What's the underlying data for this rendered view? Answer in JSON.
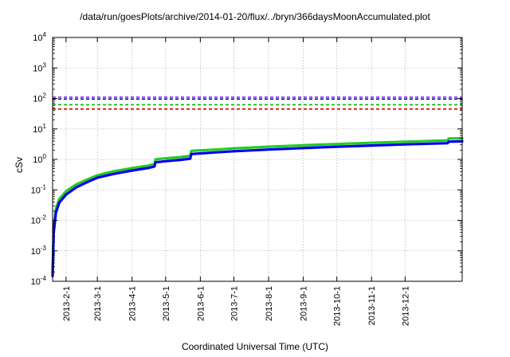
{
  "chart_data": {
    "type": "line",
    "title": "/data/run/goesPlots/archive/2014-01-20/flux/../bryn/366daysMoonAccumulated.plot",
    "xlabel": "Coordinated Universal Time (UTC)",
    "ylabel": "cSv",
    "yscale": "log",
    "ylim": [
      0.0001,
      10000
    ],
    "xlim": [
      "2013-01-20",
      "2014-01-21"
    ],
    "grid": true,
    "y_ticks": [
      {
        "value": 0.0001,
        "base": "10",
        "exp": "-4"
      },
      {
        "value": 0.001,
        "base": "10",
        "exp": "-3"
      },
      {
        "value": 0.01,
        "base": "10",
        "exp": "-2"
      },
      {
        "value": 0.1,
        "base": "10",
        "exp": "-1"
      },
      {
        "value": 1,
        "base": "10",
        "exp": "0"
      },
      {
        "value": 10,
        "base": "10",
        "exp": "1"
      },
      {
        "value": 100,
        "base": "10",
        "exp": "2"
      },
      {
        "value": 1000,
        "base": "10",
        "exp": "3"
      },
      {
        "value": 10000,
        "base": "10",
        "exp": "4"
      }
    ],
    "x_ticks": [
      {
        "date": "2013-02-01",
        "label": "2013-2-1"
      },
      {
        "date": "2013-03-01",
        "label": "2013-3-1"
      },
      {
        "date": "2013-04-01",
        "label": "2013-4-1"
      },
      {
        "date": "2013-05-01",
        "label": "2013-5-1"
      },
      {
        "date": "2013-06-01",
        "label": "2013-6-1"
      },
      {
        "date": "2013-07-01",
        "label": "2013-7-1"
      },
      {
        "date": "2013-08-01",
        "label": "2013-8-1"
      },
      {
        "date": "2013-09-01",
        "label": "2013-9-1"
      },
      {
        "date": "2013-10-01",
        "label": "2013-10-1"
      },
      {
        "date": "2013-11-01",
        "label": "2013-11-1"
      },
      {
        "date": "2013-12-01",
        "label": "2013-12-1"
      }
    ],
    "hlines": [
      {
        "value": 110,
        "color": "#8a2be2"
      },
      {
        "value": 95,
        "color": "#0000cc"
      },
      {
        "value": 62,
        "color": "#00bb00"
      },
      {
        "value": 45,
        "color": "#dd0000"
      }
    ],
    "series": [
      {
        "color": "#22cc22",
        "points": [
          [
            "2013-01-20",
            0.0002
          ],
          [
            "2013-01-21",
            0.006
          ],
          [
            "2013-01-23",
            0.025
          ],
          [
            "2013-01-26",
            0.05
          ],
          [
            "2013-02-01",
            0.09
          ],
          [
            "2013-02-10",
            0.15
          ],
          [
            "2013-02-20",
            0.22
          ],
          [
            "2013-03-01",
            0.3
          ],
          [
            "2013-03-15",
            0.4
          ],
          [
            "2013-04-01",
            0.52
          ],
          [
            "2013-04-15",
            0.62
          ],
          [
            "2013-04-21",
            0.7
          ],
          [
            "2013-04-22",
            1.0
          ],
          [
            "2013-05-01",
            1.08
          ],
          [
            "2013-05-15",
            1.2
          ],
          [
            "2013-05-23",
            1.3
          ],
          [
            "2013-05-24",
            1.9
          ],
          [
            "2013-06-15",
            2.1
          ],
          [
            "2013-07-01",
            2.3
          ],
          [
            "2013-08-01",
            2.6
          ],
          [
            "2013-09-01",
            2.9
          ],
          [
            "2013-10-01",
            3.2
          ],
          [
            "2013-11-01",
            3.5
          ],
          [
            "2013-12-01",
            3.8
          ],
          [
            "2014-01-08",
            4.2
          ],
          [
            "2014-01-09",
            4.8
          ],
          [
            "2014-01-21",
            4.9
          ]
        ]
      },
      {
        "color": "#0000ee",
        "points": [
          [
            "2013-01-20",
            0.00015
          ],
          [
            "2013-01-21",
            0.004
          ],
          [
            "2013-01-23",
            0.018
          ],
          [
            "2013-01-26",
            0.038
          ],
          [
            "2013-02-01",
            0.07
          ],
          [
            "2013-02-10",
            0.12
          ],
          [
            "2013-02-20",
            0.18
          ],
          [
            "2013-03-01",
            0.25
          ],
          [
            "2013-03-15",
            0.33
          ],
          [
            "2013-04-01",
            0.43
          ],
          [
            "2013-04-15",
            0.52
          ],
          [
            "2013-04-21",
            0.58
          ],
          [
            "2013-04-22",
            0.8
          ],
          [
            "2013-05-01",
            0.87
          ],
          [
            "2013-05-15",
            0.97
          ],
          [
            "2013-05-23",
            1.05
          ],
          [
            "2013-05-24",
            1.5
          ],
          [
            "2013-06-15",
            1.7
          ],
          [
            "2013-07-01",
            1.85
          ],
          [
            "2013-08-01",
            2.1
          ],
          [
            "2013-09-01",
            2.35
          ],
          [
            "2013-10-01",
            2.6
          ],
          [
            "2013-11-01",
            2.85
          ],
          [
            "2013-12-01",
            3.1
          ],
          [
            "2014-01-08",
            3.4
          ],
          [
            "2014-01-09",
            3.8
          ],
          [
            "2014-01-21",
            3.9
          ]
        ]
      }
    ]
  }
}
